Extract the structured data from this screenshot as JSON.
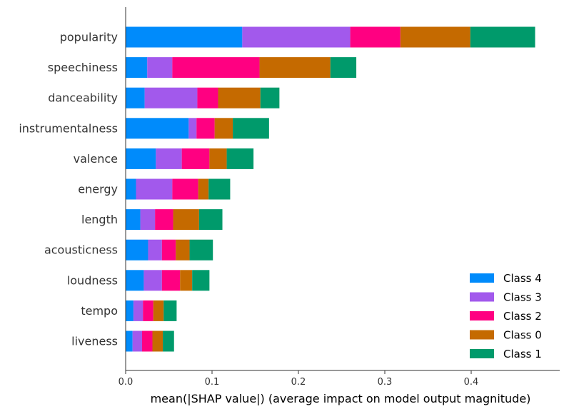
{
  "chart_data": {
    "type": "bar",
    "orientation": "horizontal",
    "stacked": true,
    "categories": [
      "popularity",
      "speechiness",
      "danceability",
      "instrumentalness",
      "valence",
      "energy",
      "length",
      "acousticness",
      "loudness",
      "tempo",
      "liveness"
    ],
    "series": [
      {
        "name": "Class 4",
        "color": "#008bfb",
        "values": [
          0.135,
          0.025,
          0.022,
          0.073,
          0.035,
          0.012,
          0.017,
          0.026,
          0.021,
          0.009,
          0.008
        ]
      },
      {
        "name": "Class 3",
        "color": "#a259ec",
        "values": [
          0.125,
          0.029,
          0.061,
          0.009,
          0.03,
          0.042,
          0.017,
          0.016,
          0.021,
          0.011,
          0.011
        ]
      },
      {
        "name": "Class 2",
        "color": "#ff0081",
        "values": [
          0.058,
          0.101,
          0.024,
          0.021,
          0.032,
          0.03,
          0.021,
          0.016,
          0.021,
          0.012,
          0.012
        ]
      },
      {
        "name": "Class 0",
        "color": "#c56a00",
        "values": [
          0.081,
          0.082,
          0.049,
          0.021,
          0.02,
          0.012,
          0.03,
          0.016,
          0.014,
          0.012,
          0.012
        ]
      },
      {
        "name": "Class 1",
        "color": "#009a6b",
        "values": [
          0.075,
          0.03,
          0.022,
          0.042,
          0.031,
          0.025,
          0.027,
          0.027,
          0.02,
          0.015,
          0.013
        ]
      }
    ],
    "legend_order": [
      "Class 4",
      "Class 3",
      "Class 2",
      "Class 0",
      "Class 1"
    ],
    "xlim": [
      0,
      0.48
    ],
    "xticks": [
      0.0,
      0.1,
      0.2,
      0.3,
      0.4
    ],
    "xtick_labels": [
      "0.0",
      "0.1",
      "0.2",
      "0.3",
      "0.4"
    ],
    "xlabel": "mean(|SHAP value|) (average impact on model output magnitude)",
    "ylabel": "",
    "title": "",
    "grid": false,
    "legend_position": "bottom-right"
  }
}
